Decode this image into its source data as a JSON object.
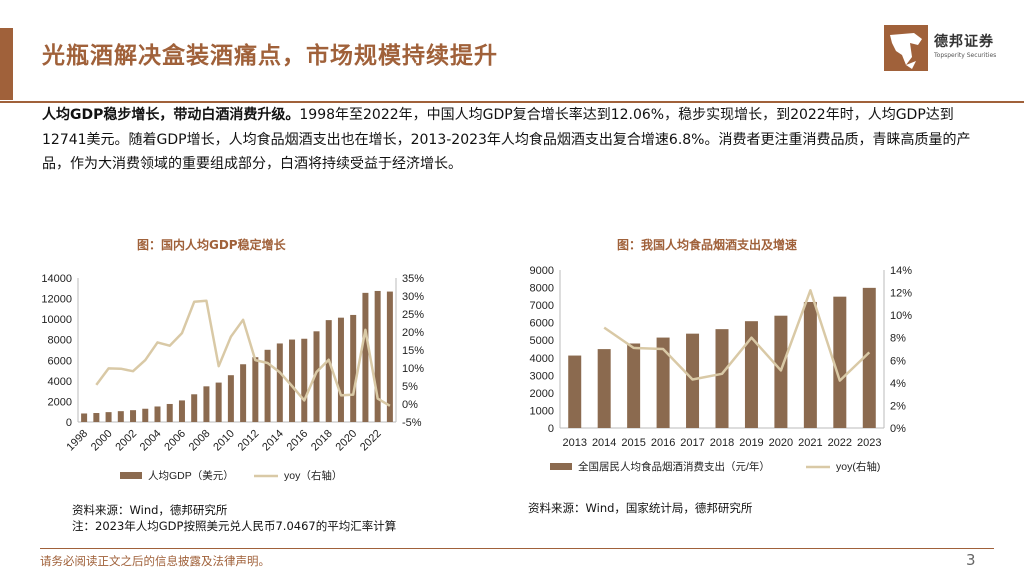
{
  "header": {
    "title": "光瓶酒解决盒装酒痛点，市场规模持续提升",
    "logo_cn": "德邦证券",
    "logo_en": "Topsperity Securities"
  },
  "body": {
    "lead": "人均GDP稳步增长，带动白酒消费升级。",
    "text": "1998年至2022年，中国人均GDP复合增长率达到12.06%，稳步实现增长，到2022年时，人均GDP达到12741美元。随着GDP增长，人均食品烟酒支出也在增长，2013-2023年人均食品烟酒支出复合增速6.8%。消费者更注重消费品质，青睐高质量的产品，作为大消费领域的重要组成部分，白酒将持续受益于经济增长。"
  },
  "chart1": {
    "title": "图：国内人均GDP稳定增长",
    "source": "资料来源：Wind，德邦研究所",
    "note": "注：2023年人均GDP按照美元兑人民币7.0467的平均汇率计算"
  },
  "chart2": {
    "title": "图：我国人均食品烟酒支出及增速",
    "source": "资料来源：Wind，国家统计局，德邦研究所"
  },
  "footer": {
    "disclaimer": "请务必阅读正文之后的信息披露及法律声明。",
    "page": "3"
  },
  "colors": {
    "accent": "#a0613a",
    "bar": "#8b6a4f",
    "line": "#d9c9a6"
  },
  "chart_data": [
    {
      "type": "bar",
      "categories": [
        "1998",
        "1999",
        "2000",
        "2001",
        "2002",
        "2003",
        "2004",
        "2005",
        "2006",
        "2007",
        "2008",
        "2009",
        "2010",
        "2011",
        "2012",
        "2013",
        "2014",
        "2015",
        "2016",
        "2017",
        "2018",
        "2019",
        "2020",
        "2021",
        "2022",
        "2023"
      ],
      "x_tick_labels": [
        "1998",
        "2000",
        "2002",
        "2004",
        "2006",
        "2008",
        "2010",
        "2012",
        "2014",
        "2016",
        "2018",
        "2020",
        "2022"
      ],
      "series": [
        {
          "name": "人均GDP（美元）",
          "axis": "left",
          "type": "bar",
          "values": [
            829,
            873,
            959,
            1053,
            1149,
            1289,
            1509,
            1753,
            2099,
            2694,
            3468,
            3832,
            4550,
            5614,
            6300,
            7020,
            7636,
            8016,
            8094,
            8817,
            9905,
            10143,
            10409,
            12556,
            12741,
            12681
          ]
        },
        {
          "name": "yoy（右轴）",
          "axis": "right",
          "type": "line",
          "values": [
            null,
            5.3,
            9.9,
            9.8,
            9.1,
            12.2,
            17.1,
            16.2,
            19.7,
            28.4,
            28.7,
            10.5,
            18.7,
            23.4,
            12.2,
            11.4,
            8.8,
            5.0,
            1.0,
            8.9,
            12.3,
            2.4,
            2.6,
            20.6,
            1.5,
            -0.5
          ]
        }
      ],
      "yleft_ticks": [
        0,
        2000,
        4000,
        6000,
        8000,
        10000,
        12000,
        14000
      ],
      "yright_ticks": [
        "-5%",
        "0%",
        "5%",
        "10%",
        "15%",
        "20%",
        "25%",
        "30%",
        "35%"
      ],
      "ylim_left": [
        0,
        14000
      ],
      "ylim_right": [
        -5,
        35
      ],
      "legend": "bottom"
    },
    {
      "type": "bar",
      "categories": [
        "2013",
        "2014",
        "2015",
        "2016",
        "2017",
        "2018",
        "2019",
        "2020",
        "2021",
        "2022",
        "2023"
      ],
      "series": [
        {
          "name": "全国居民人均食品烟酒消费支出（元/年）",
          "axis": "left",
          "type": "bar",
          "values": [
            4127,
            4494,
            4814,
            5151,
            5374,
            5631,
            6084,
            6397,
            7178,
            7481,
            7983
          ]
        },
        {
          "name": "yoy(右轴)",
          "axis": "right",
          "type": "line",
          "values": [
            null,
            8.9,
            7.1,
            7.0,
            4.3,
            4.8,
            8.0,
            5.1,
            12.2,
            4.2,
            6.7
          ]
        }
      ],
      "yleft_ticks": [
        0,
        1000,
        2000,
        3000,
        4000,
        5000,
        6000,
        7000,
        8000,
        9000
      ],
      "yright_ticks": [
        "0%",
        "2%",
        "4%",
        "6%",
        "8%",
        "10%",
        "12%",
        "14%"
      ],
      "ylim_left": [
        0,
        9000
      ],
      "ylim_right": [
        0,
        14
      ],
      "legend": "bottom"
    }
  ]
}
